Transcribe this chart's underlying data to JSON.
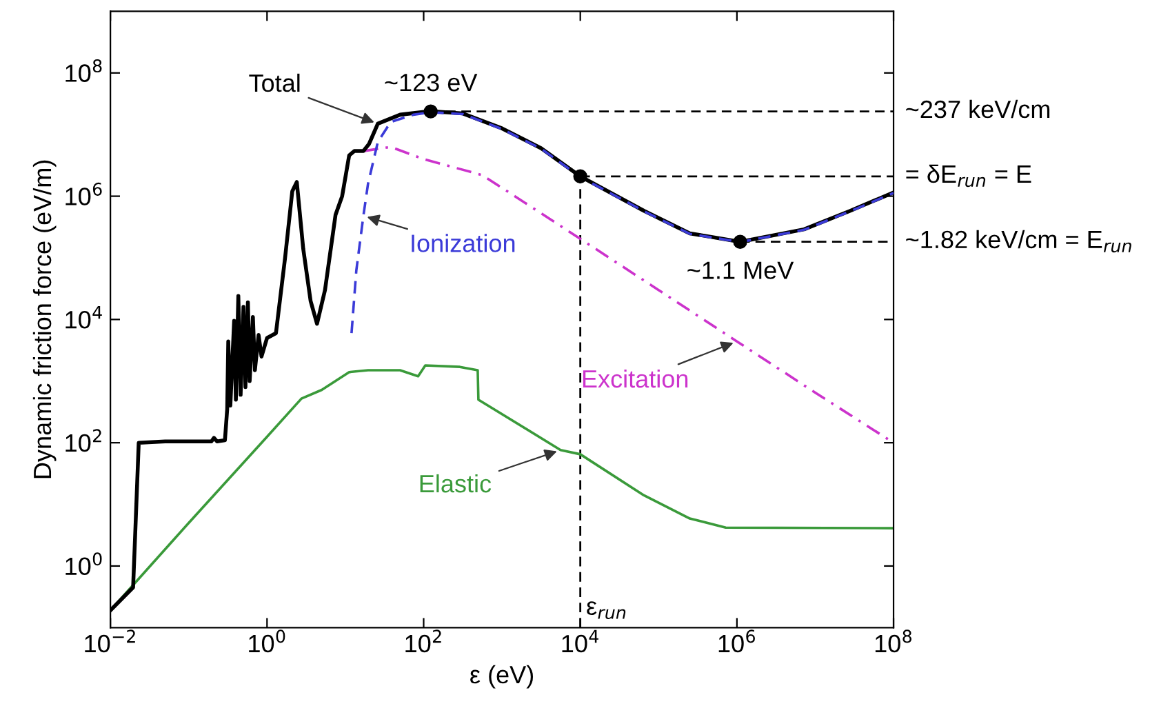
{
  "chart_data": {
    "type": "line",
    "xlabel": "ε (eV)",
    "ylabel": "Dynamic friction force (eV/m)",
    "log": "xy",
    "xlim": [
      0.01,
      100000000
    ],
    "ylim": [
      0.1,
      1000000000
    ],
    "xticks": [
      {
        "value": 0.01,
        "label": "10$^{−2}$"
      },
      {
        "value": 1,
        "label": "10$^{0}$"
      },
      {
        "value": 100,
        "label": "10$^{2}$"
      },
      {
        "value": 10000,
        "label": "10$^{4}$"
      },
      {
        "value": 1000000,
        "label": "10$^{6}$"
      },
      {
        "value": 100000000,
        "label": "10$^{8}$"
      }
    ],
    "yticks": [
      {
        "value": 1,
        "label": "10$^{0}$"
      },
      {
        "value": 100,
        "label": "10$^{2}$"
      },
      {
        "value": 10000,
        "label": "10$^{4}$"
      },
      {
        "value": 1000000,
        "label": "10$^{6}$"
      },
      {
        "value": 100000000,
        "label": "10$^{8}$"
      }
    ],
    "grid": false,
    "legend": false,
    "series": [
      {
        "name": "Elastic",
        "color": "#3a9a3a",
        "line_style": "solid",
        "x": [
          0.01,
          0.1,
          1,
          2.75,
          5,
          11.2,
          19.5,
          50,
          85,
          105,
          290,
          490,
          500,
          5600,
          10000,
          65000,
          250000,
          720000,
          100000000
        ],
        "values": [
          0.19,
          5,
          125,
          520,
          720,
          1400,
          1500,
          1500,
          1200,
          1800,
          1700,
          1500,
          500,
          76,
          65,
          14,
          5.9,
          4.2,
          4.1
        ]
      },
      {
        "name": "Excitation",
        "color": "#cc33cc",
        "line_style": "dashdot",
        "x": [
          17,
          38,
          100,
          560,
          4300,
          100000,
          1000000,
          10000000,
          100000000
        ],
        "values": [
          5400000,
          6300000,
          4000000,
          2200000,
          410000,
          30000,
          4400,
          650,
          100
        ]
      },
      {
        "name": "Total",
        "color": "#000000",
        "line_style": "solid",
        "x": [
          0.01,
          0.0195,
          0.021,
          0.023,
          0.05,
          0.195,
          0.21,
          0.23,
          0.29,
          0.31,
          0.32,
          0.34,
          0.38,
          0.4,
          0.43,
          0.46,
          0.5,
          0.53,
          0.57,
          0.6,
          0.66,
          0.7,
          0.78,
          0.85,
          1.0,
          1.3,
          1.7,
          2.1,
          2.4,
          2.9,
          3.6,
          4.35,
          5.5,
          7.5,
          9.1,
          11.2,
          13,
          17,
          20,
          26,
          50,
          120,
          316,
          1000,
          3160,
          10000,
          65000,
          250000,
          1100000,
          7200000,
          28000000,
          100000000
        ],
        "values": [
          0.19,
          0.45,
          5,
          100,
          105,
          105,
          120,
          105,
          110,
          350,
          4400,
          400,
          9500,
          500,
          24000,
          600,
          16000,
          800,
          19000,
          1000,
          11000,
          1500,
          5600,
          2500,
          5000,
          6000,
          100000,
          1200000,
          1700000,
          140000,
          20000,
          8500,
          30000,
          500000,
          1000000,
          4600000,
          5400000,
          5400000,
          7000000,
          15000000,
          21000000,
          24000000,
          22000000,
          12600000,
          6000000,
          2100000,
          580000,
          250000,
          182000,
          290000,
          580000,
          1150000
        ]
      },
      {
        "name": "Ionization",
        "color": "#3b3bd8",
        "line_style": "dashed",
        "x": [
          12,
          13.8,
          17,
          19.5,
          26,
          38,
          74,
          126,
          316,
          1000,
          3160,
          10000,
          65000,
          250000,
          1100000,
          7200000,
          28000000,
          100000000
        ],
        "values": [
          6000,
          62000,
          480000,
          1600000,
          7600000,
          16000000,
          21000000,
          23000000,
          21500000,
          12300000,
          5900000,
          2050000,
          570000,
          245000,
          180000,
          285000,
          570000,
          1130000
        ]
      },
      {
        "type": "scatter",
        "color": "#000000",
        "marker": "circle",
        "x": [
          123,
          10000,
          1100000
        ],
        "values": [
          23700000,
          2100000,
          182000
        ]
      }
    ],
    "ref_lines": [
      {
        "axis": "y",
        "value": 23700000,
        "label": "~237 keV/cm",
        "color": "#000000",
        "line_style": "dashed"
      },
      {
        "axis": "y",
        "value": 2100000,
        "label": "= δE$_{run}$ = E",
        "color": "#000000",
        "line_style": "dashed"
      },
      {
        "axis": "y",
        "value": 182000,
        "label": "~1.82 keV/cm = E$_{run}$",
        "color": "#000000",
        "line_style": "dashed"
      },
      {
        "axis": "x",
        "value": 10000,
        "label": "ε$_{run}$",
        "color": "#000000",
        "line_style": "dashed"
      }
    ],
    "annotations": [
      {
        "text": "~123 eV",
        "x": 123,
        "y": 23700000
      },
      {
        "text": "~1.1 MeV",
        "x": 1100000,
        "y": 182000
      }
    ]
  }
}
